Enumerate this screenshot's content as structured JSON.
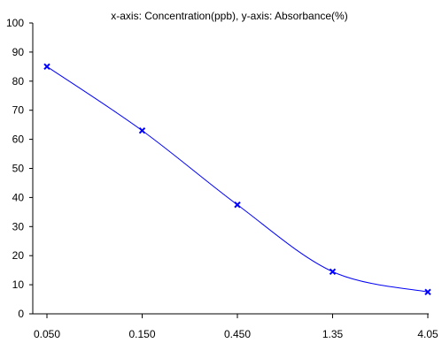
{
  "chart_data": {
    "type": "line",
    "title": "x-axis: Concentration(ppb), y-axis: Absorbance(%)",
    "categories": [
      "0.050",
      "0.150",
      "0.450",
      "1.35",
      "4.05"
    ],
    "series": [
      {
        "values": [
          85,
          63,
          37.5,
          14.5,
          7.5
        ]
      }
    ],
    "ylim": [
      0,
      100
    ],
    "yticks": [
      0,
      10,
      20,
      30,
      40,
      50,
      60,
      70,
      80,
      90,
      100
    ],
    "grid": false,
    "legend": "none",
    "line_color": "#0000ff",
    "marker": "x",
    "smooth": true
  }
}
